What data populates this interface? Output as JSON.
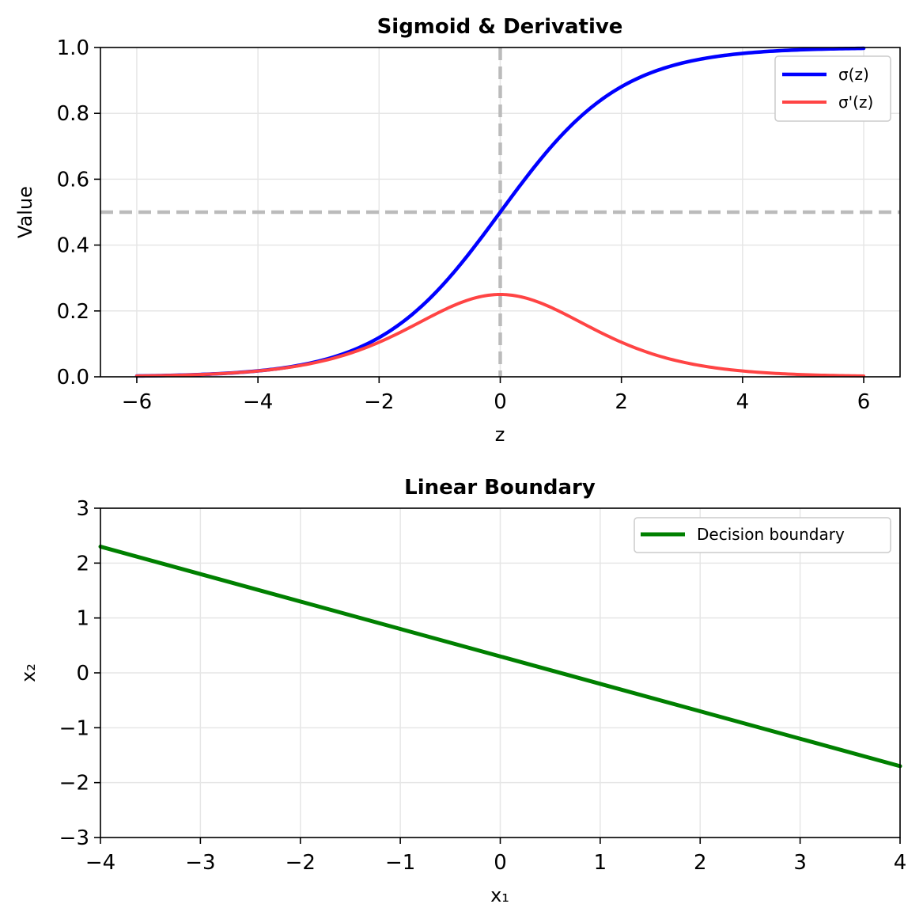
{
  "chart_data": [
    {
      "type": "line",
      "title": "Sigmoid & Derivative",
      "xlabel": "z",
      "ylabel": "Value",
      "xlim": [
        -6.6,
        6.6
      ],
      "ylim": [
        0.0,
        1.0
      ],
      "xticks": [
        -6,
        -4,
        -2,
        0,
        2,
        4,
        6
      ],
      "xtick_labels": [
        "−6",
        "−4",
        "−2",
        "0",
        "2",
        "4",
        "6"
      ],
      "yticks": [
        0.0,
        0.2,
        0.4,
        0.6,
        0.8,
        1.0
      ],
      "ytick_labels": [
        "0.0",
        "0.2",
        "0.4",
        "0.6",
        "0.8",
        "1.0"
      ],
      "grid": true,
      "legend_position": "top-right",
      "reference_lines": [
        {
          "orientation": "horizontal",
          "value": 0.5,
          "color": "#bbbbbb",
          "style": "dashed"
        },
        {
          "orientation": "vertical",
          "value": 0,
          "color": "#bbbbbb",
          "style": "dashed"
        }
      ],
      "series": [
        {
          "name": "σ(z)",
          "color": "#0000ff",
          "x": [
            -6,
            -5,
            -4,
            -3,
            -2.5,
            -2,
            -1.5,
            -1,
            -0.5,
            0,
            0.5,
            1,
            1.5,
            2,
            2.5,
            3,
            4,
            5,
            6
          ],
          "y": [
            0.0025,
            0.0067,
            0.018,
            0.047,
            0.076,
            0.119,
            0.182,
            0.269,
            0.378,
            0.5,
            0.622,
            0.731,
            0.818,
            0.881,
            0.924,
            0.953,
            0.982,
            0.993,
            0.9975
          ]
        },
        {
          "name": "σ'(z)",
          "color": "#ff4444",
          "x": [
            -6,
            -5,
            -4,
            -3,
            -2.5,
            -2,
            -1.5,
            -1,
            -0.5,
            0,
            0.5,
            1,
            1.5,
            2,
            2.5,
            3,
            4,
            5,
            6
          ],
          "y": [
            0.0025,
            0.0066,
            0.0177,
            0.0452,
            0.0701,
            0.105,
            0.149,
            0.197,
            0.235,
            0.25,
            0.235,
            0.197,
            0.149,
            0.105,
            0.0701,
            0.0452,
            0.0177,
            0.0066,
            0.0025
          ]
        }
      ]
    },
    {
      "type": "line",
      "title": "Linear Boundary",
      "xlabel": "x₁",
      "ylabel": "x₂",
      "xlim": [
        -4,
        4
      ],
      "ylim": [
        -3,
        3
      ],
      "xticks": [
        -4,
        -3,
        -2,
        -1,
        0,
        1,
        2,
        3,
        4
      ],
      "xtick_labels": [
        "−4",
        "−3",
        "−2",
        "−1",
        "0",
        "1",
        "2",
        "3",
        "4"
      ],
      "yticks": [
        -3,
        -2,
        -1,
        0,
        1,
        2,
        3
      ],
      "ytick_labels": [
        "−3",
        "−2",
        "−1",
        "0",
        "1",
        "2",
        "3"
      ],
      "grid": true,
      "legend_position": "top-right",
      "series": [
        {
          "name": "Decision boundary",
          "color": "#008000",
          "x": [
            -4,
            4
          ],
          "y": [
            2.3,
            -1.7
          ]
        }
      ]
    }
  ]
}
